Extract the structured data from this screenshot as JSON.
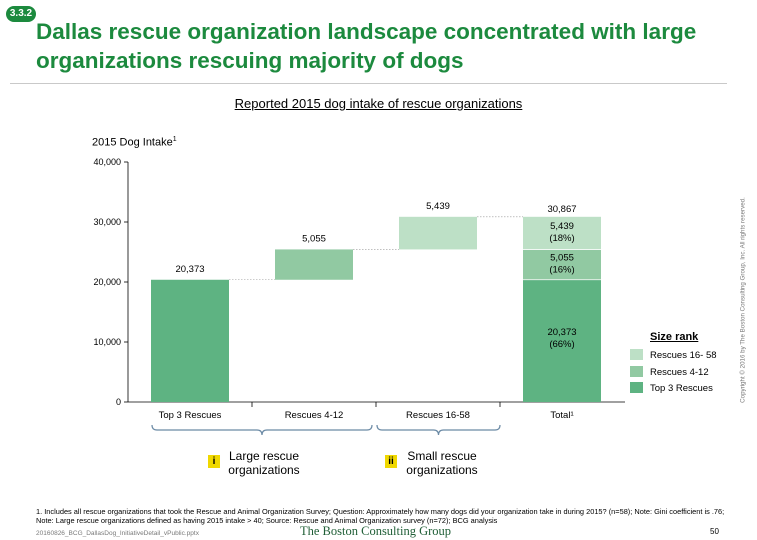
{
  "badge": "3.3.2",
  "title": "Dallas rescue organization landscape concentrated with large organizations rescuing majority of dogs",
  "chart_heading": "Reported 2015 dog intake of rescue organizations",
  "y_axis_title": "2015 Dog Intake",
  "y_axis_title_sup": "1",
  "colors": {
    "title_green": "#1c8a3e",
    "top3": "#5eb382",
    "rescues_4_12": "#91c9a2",
    "rescues_16_58": "#bde0c6",
    "marker_yellow": "#f0d800",
    "brand": "#1f5e36"
  },
  "chart_data": {
    "type": "bar",
    "subtype": "waterfall",
    "ylim": [
      0,
      40000
    ],
    "yticks": [
      "0",
      "10,000",
      "20,000",
      "30,000",
      "40,000"
    ],
    "categories": [
      "Top 3 Rescues",
      "Rescues 4-12",
      "Rescues 16-58",
      "Total"
    ],
    "category_labels": [
      "Top 3 Rescues",
      "Rescues 4-12",
      "Rescues 16-58",
      "Total¹"
    ],
    "steps": [
      {
        "category": "Top 3 Rescues",
        "value": 20373,
        "label": "20,373",
        "color_key": "top3"
      },
      {
        "category": "Rescues 4-12",
        "value": 5055,
        "label": "5,055",
        "color_key": "rescues_4_12"
      },
      {
        "category": "Rescues 16-58",
        "value": 5439,
        "label": "5,439",
        "color_key": "rescues_16_58"
      }
    ],
    "total": {
      "category": "Total",
      "value": 30867,
      "label": "30,867",
      "segments": [
        {
          "value": 20373,
          "label": "20,373",
          "pct": "(66%)",
          "color_key": "top3"
        },
        {
          "value": 5055,
          "label": "5,055",
          "pct": "(16%)",
          "color_key": "rescues_4_12"
        },
        {
          "value": 5439,
          "label": "5,439",
          "pct": "(18%)",
          "color_key": "rescues_16_58"
        }
      ]
    },
    "legend": {
      "title": "Size rank",
      "position": "right",
      "items": [
        {
          "label": "Rescues 16- 58",
          "color_key": "rescues_16_58"
        },
        {
          "label": "Rescues 4-12",
          "color_key": "rescues_4_12"
        },
        {
          "label": "Top 3 Rescues",
          "color_key": "top3"
        }
      ]
    }
  },
  "groups": [
    {
      "marker": "i",
      "label": "Large rescue organizations"
    },
    {
      "marker": "ii",
      "label": "Small rescue organizations"
    }
  ],
  "footnote": "1. Includes all rescue organizations that took the Rescue and Animal Organization Survey; Question: Approximately how many dogs did your organization take in during 2015? (n=58); Note: Gini coefficient is .76; Note: Large rescue organizations defined as having 2015 intake > 40; Source: Rescue and Animal Organization survey (n=72); BCG analysis",
  "file_name": "20160826_BCG_DallasDog_InitiativeDetail_vPublic.pptx",
  "brand": "The Boston Consulting Group",
  "page_number": "50",
  "copyright": "Copyright © 2016 by The Boston Consulting Group, Inc. All rights reserved."
}
